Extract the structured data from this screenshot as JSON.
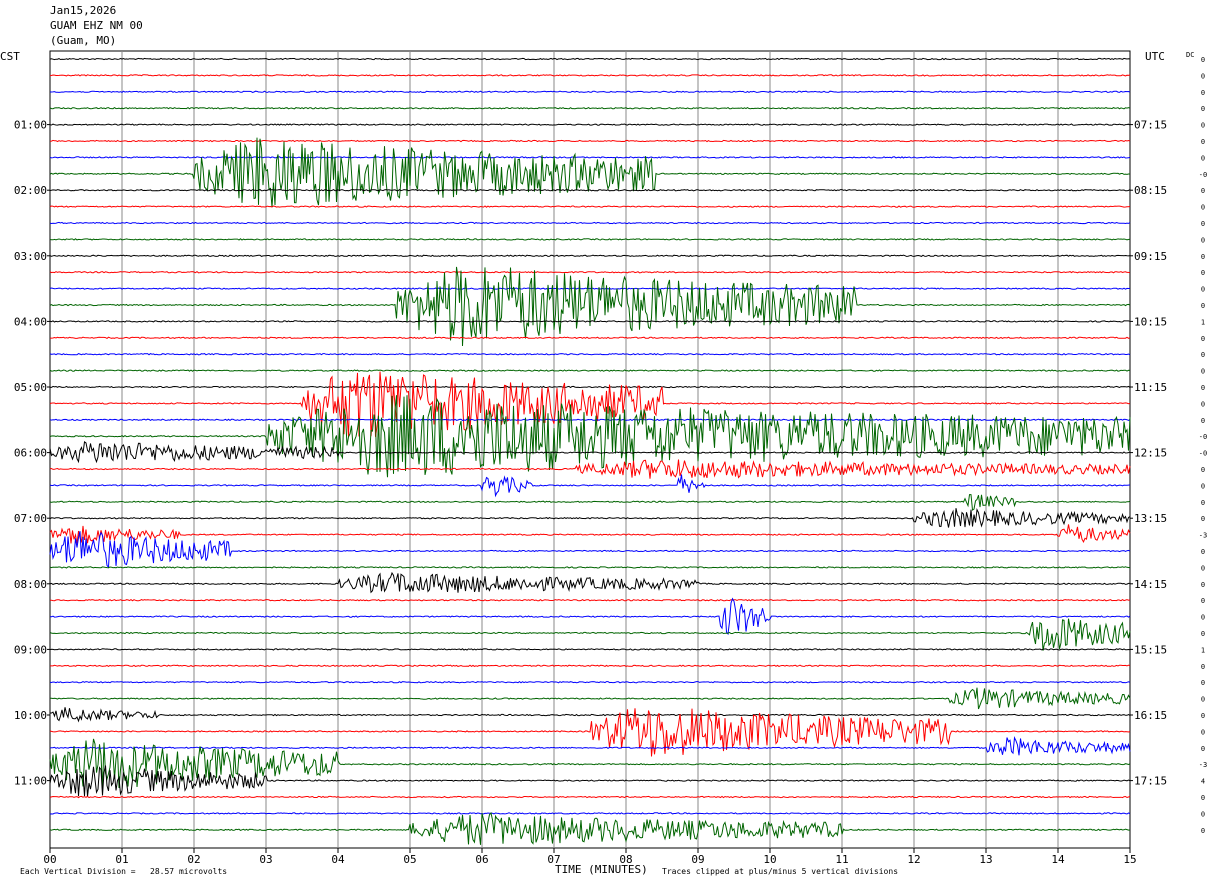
{
  "header": {
    "date": "Jan15,2026",
    "station": "GUAM EHZ NM 00",
    "location": "(Guam, MO)"
  },
  "labels": {
    "left_zone": "CST",
    "right_zone": "UTC",
    "dc_label": "DC"
  },
  "footer": {
    "scale_note": "Each Vertical Division =   28.57 microvolts",
    "clip_note": "Traces clipped at plus/minus 5 vertical divisions"
  },
  "chart_data": {
    "type": "line",
    "title": "",
    "xlabel": "TIME (MINUTES)",
    "xlim": [
      0,
      15
    ],
    "x_ticks": [
      "00",
      "01",
      "02",
      "03",
      "04",
      "05",
      "06",
      "07",
      "08",
      "09",
      "10",
      "11",
      "12",
      "13",
      "14",
      "15"
    ],
    "trace_count": 48,
    "trace_colors": [
      "#000000",
      "#ff0000",
      "#0000ff",
      "#006400"
    ],
    "left_time_labels": [
      {
        "trace": 4,
        "text": "01:00"
      },
      {
        "trace": 8,
        "text": "02:00"
      },
      {
        "trace": 12,
        "text": "03:00"
      },
      {
        "trace": 16,
        "text": "04:00"
      },
      {
        "trace": 20,
        "text": "05:00"
      },
      {
        "trace": 24,
        "text": "06:00"
      },
      {
        "trace": 28,
        "text": "07:00"
      },
      {
        "trace": 32,
        "text": "08:00"
      },
      {
        "trace": 36,
        "text": "09:00"
      },
      {
        "trace": 40,
        "text": "10:00"
      },
      {
        "trace": 44,
        "text": "11:00"
      }
    ],
    "right_time_labels": [
      {
        "trace": 4,
        "text": "07:15"
      },
      {
        "trace": 8,
        "text": "08:15"
      },
      {
        "trace": 12,
        "text": "09:15"
      },
      {
        "trace": 16,
        "text": "10:15"
      },
      {
        "trace": 20,
        "text": "11:15"
      },
      {
        "trace": 24,
        "text": "12:15"
      },
      {
        "trace": 28,
        "text": "13:15"
      },
      {
        "trace": 32,
        "text": "14:15"
      },
      {
        "trace": 36,
        "text": "15:15"
      },
      {
        "trace": 40,
        "text": "16:15"
      },
      {
        "trace": 44,
        "text": "17:15"
      }
    ],
    "dc_offsets": [
      "0",
      "0",
      "0",
      "0",
      "0",
      "0",
      "0",
      "-0",
      "0",
      "0",
      "0",
      "0",
      "0",
      "0",
      "0",
      "0",
      "1",
      "0",
      "0",
      "0",
      "0",
      "0",
      "0",
      "-0",
      "-0",
      "0",
      "0",
      "0",
      "0",
      "-3",
      "0",
      "0",
      "0",
      "0",
      "0",
      "0",
      "1",
      "0",
      "0",
      "0",
      "0",
      "0",
      "0",
      "-3",
      "4",
      "0",
      "0",
      "0"
    ],
    "events": [
      {
        "trace": 7,
        "start": 2.0,
        "end": 8.4,
        "amp": 4.5
      },
      {
        "trace": 15,
        "start": 4.8,
        "end": 11.2,
        "amp": 5
      },
      {
        "trace": 21,
        "start": 3.5,
        "end": 8.5,
        "amp": 4.5
      },
      {
        "trace": 23,
        "start": 3.0,
        "end": 15.0,
        "amp": 5
      },
      {
        "trace": 24,
        "start": 0.0,
        "end": 4.0,
        "amp": 1.4
      },
      {
        "trace": 25,
        "start": 7.3,
        "end": 15.0,
        "amp": 1.2
      },
      {
        "trace": 26,
        "start": 6.0,
        "end": 6.7,
        "amp": 1.5
      },
      {
        "trace": 26,
        "start": 8.7,
        "end": 9.1,
        "amp": 1.3
      },
      {
        "trace": 27,
        "start": 12.7,
        "end": 13.4,
        "amp": 1.1
      },
      {
        "trace": 28,
        "start": 12.0,
        "end": 15.0,
        "amp": 1.2
      },
      {
        "trace": 29,
        "start": 0.0,
        "end": 1.8,
        "amp": 1.2
      },
      {
        "trace": 29,
        "start": 14.0,
        "end": 15.0,
        "amp": 1.2
      },
      {
        "trace": 30,
        "start": 0.0,
        "end": 2.5,
        "amp": 2.5
      },
      {
        "trace": 32,
        "start": 4.0,
        "end": 9.0,
        "amp": 1.3
      },
      {
        "trace": 34,
        "start": 9.3,
        "end": 10.0,
        "amp": 2.8
      },
      {
        "trace": 35,
        "start": 13.6,
        "end": 15.0,
        "amp": 2.5
      },
      {
        "trace": 39,
        "start": 12.5,
        "end": 15.0,
        "amp": 1.3
      },
      {
        "trace": 40,
        "start": 0.0,
        "end": 1.5,
        "amp": 0.9
      },
      {
        "trace": 41,
        "start": 7.5,
        "end": 12.5,
        "amp": 3.2
      },
      {
        "trace": 42,
        "start": 13.0,
        "end": 15.0,
        "amp": 1.2
      },
      {
        "trace": 43,
        "start": 0.0,
        "end": 4.0,
        "amp": 3.2
      },
      {
        "trace": 44,
        "start": 0.0,
        "end": 3.0,
        "amp": 2.0
      },
      {
        "trace": 47,
        "start": 5.0,
        "end": 11.0,
        "amp": 2.0
      }
    ]
  }
}
